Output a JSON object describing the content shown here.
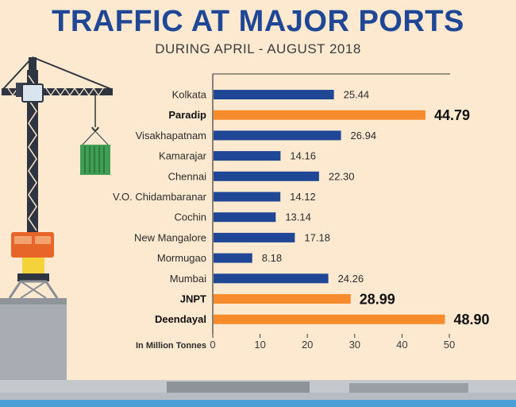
{
  "header": {
    "title": "TRAFFIC AT MAJOR PORTS",
    "subtitle": "DURING APRIL - AUGUST 2018"
  },
  "colors": {
    "background": "#fde9cf",
    "bar_default": "#1f4796",
    "bar_highlight": "#f58b2b",
    "title": "#1f4796"
  },
  "chart_data": {
    "type": "bar",
    "orientation": "horizontal",
    "title": "TRAFFIC AT MAJOR PORTS",
    "subtitle": "DURING APRIL - AUGUST 2018",
    "xlabel": "In Million Tonnes",
    "ylabel": "",
    "xlim": [
      0,
      50
    ],
    "xticks": [
      0,
      10,
      20,
      30,
      40,
      50
    ],
    "grid": false,
    "categories": [
      "Kolkata",
      "Paradip",
      "Visakhapatnam",
      "Kamarajar",
      "Chennai",
      "V.O. Chidambaranar",
      "Cochin",
      "New Mangalore",
      "Mormugao",
      "Mumbai",
      "JNPT",
      "Deendayal"
    ],
    "values": [
      25.44,
      44.79,
      26.94,
      14.16,
      22.3,
      14.12,
      13.14,
      17.18,
      8.18,
      24.26,
      28.99,
      48.9
    ],
    "value_labels": [
      "25.44",
      "44.79",
      "26.94",
      "14.16",
      "22.30",
      "14.12",
      "13.14",
      "17.18",
      "8.18",
      "24.26",
      "28.99",
      "48.90"
    ],
    "highlighted": [
      "Paradip",
      "JNPT",
      "Deendayal"
    ]
  }
}
